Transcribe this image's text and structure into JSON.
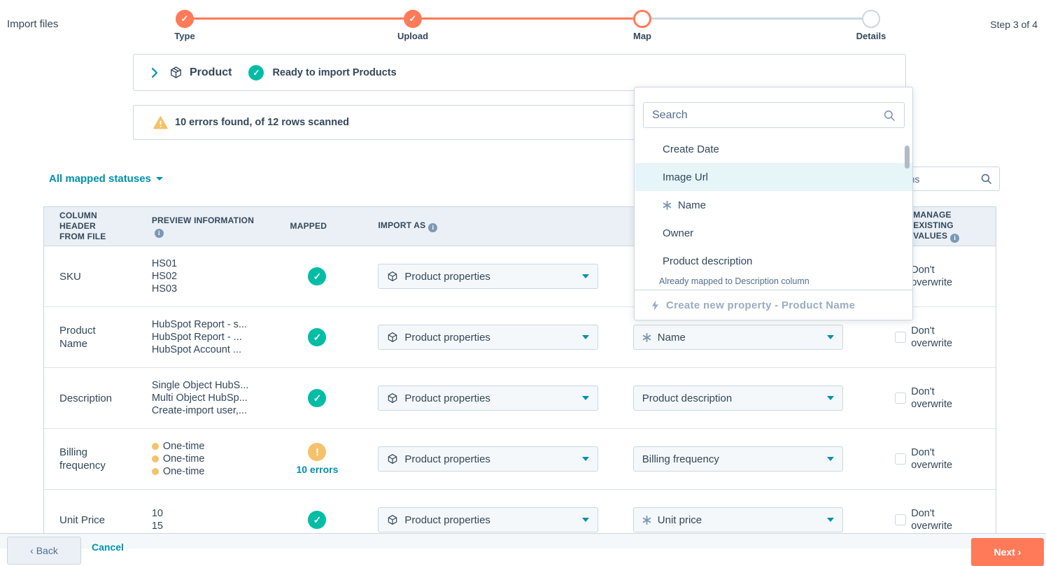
{
  "page": {
    "title": "Import files",
    "step_indicator": "Step 3 of 4"
  },
  "stepper": {
    "steps": [
      {
        "label": "Type",
        "state": "complete"
      },
      {
        "label": "Upload",
        "state": "complete"
      },
      {
        "label": "Map",
        "state": "current"
      },
      {
        "label": "Details",
        "state": "upcoming"
      }
    ]
  },
  "product_panel": {
    "object_name": "Product",
    "status": "Ready to import Products"
  },
  "errors_banner": {
    "message": "10 errors found, of 12 rows scanned"
  },
  "toolbar": {
    "filter_label": "All mapped statuses",
    "search_placeholder": "Search columns"
  },
  "table": {
    "headers": [
      {
        "label": "COLUMN HEADER FROM FILE",
        "info": false
      },
      {
        "label": "PREVIEW INFORMATION",
        "info": true
      },
      {
        "label": "MAPPED",
        "info": false
      },
      {
        "label": "IMPORT AS",
        "info": true
      },
      {
        "label": "",
        "info": false
      },
      {
        "label": "MANAGE EXISTING VALUES",
        "info": true
      }
    ],
    "rows": [
      {
        "header": "SKU",
        "preview": [
          "HS01",
          "HS02",
          "HS03"
        ],
        "preview_dots": false,
        "mapped": {
          "state": "ok"
        },
        "import_as": "Product properties",
        "property": null,
        "dont_overwrite": "Don't overwrite"
      },
      {
        "header": "Product Name",
        "preview": [
          "HubSpot Report - s...",
          "HubSpot Report - ...",
          "HubSpot Account ..."
        ],
        "preview_dots": false,
        "mapped": {
          "state": "ok"
        },
        "import_as": "Product properties",
        "property": {
          "label": "Name",
          "required": true
        },
        "dont_overwrite": "Don't overwrite"
      },
      {
        "header": "Description",
        "preview": [
          "Single Object HubS...",
          "Multi Object HubSp...",
          "Create-import user,..."
        ],
        "preview_dots": false,
        "mapped": {
          "state": "ok"
        },
        "import_as": "Product properties",
        "property": {
          "label": "Product description",
          "required": false
        },
        "dont_overwrite": "Don't overwrite"
      },
      {
        "header": "Billing frequency",
        "preview": [
          "One-time",
          "One-time",
          "One-time"
        ],
        "preview_dots": true,
        "mapped": {
          "state": "errors",
          "label": "10 errors"
        },
        "import_as": "Product properties",
        "property": {
          "label": "Billing frequency",
          "required": false
        },
        "dont_overwrite": "Don't overwrite"
      },
      {
        "header": "Unit Price",
        "preview": [
          "10",
          "15"
        ],
        "preview_dots": false,
        "mapped": {
          "state": "ok"
        },
        "import_as": "Product properties",
        "property": {
          "label": "Unit price",
          "required": true
        },
        "dont_overwrite": "Don't overwrite"
      }
    ]
  },
  "dropdown": {
    "search_placeholder": "Search",
    "items": [
      {
        "label": "Create Date",
        "required": false,
        "highlighted": false,
        "note": ""
      },
      {
        "label": "Image Url",
        "required": false,
        "highlighted": true,
        "note": ""
      },
      {
        "label": "Name",
        "required": true,
        "highlighted": false,
        "note": ""
      },
      {
        "label": "Owner",
        "required": false,
        "highlighted": false,
        "note": ""
      },
      {
        "label": "Product description",
        "required": false,
        "highlighted": false,
        "note": "Already mapped to Description column"
      }
    ],
    "footer_action": "Create new property - Product Name"
  },
  "footer": {
    "back_label": "‹ Back",
    "cancel_label": "Cancel",
    "next_label": "Next ›"
  }
}
